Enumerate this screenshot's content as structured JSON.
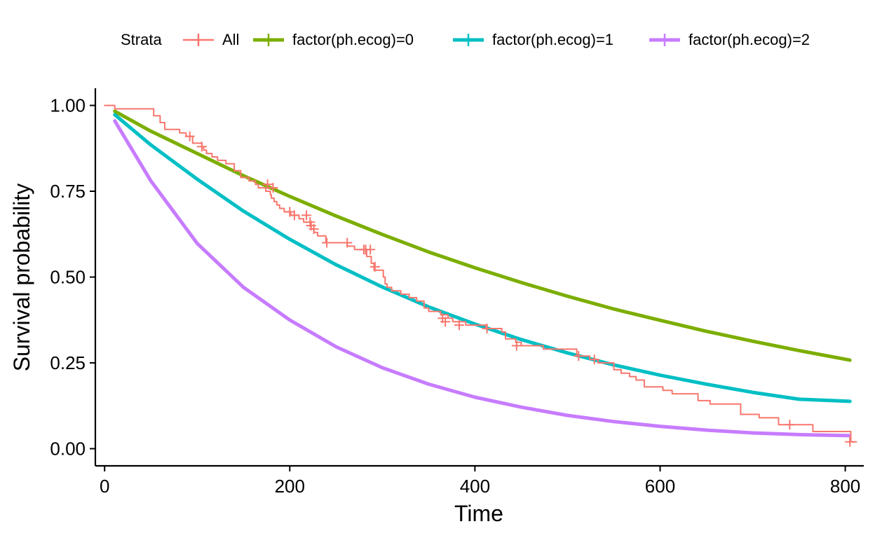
{
  "chart_data": {
    "type": "line",
    "xlabel": "Time",
    "ylabel": "Survival probability",
    "xlim": [
      -10,
      820
    ],
    "ylim": [
      -0.05,
      1.05
    ],
    "x_ticks": [
      0,
      200,
      400,
      600,
      800
    ],
    "x_tick_labels": [
      "0",
      "200",
      "400",
      "600",
      "800"
    ],
    "y_ticks": [
      0,
      0.25,
      0.5,
      0.75,
      1.0
    ],
    "y_tick_labels": [
      "0.00",
      "0.25",
      "0.50",
      "0.75",
      "1.00"
    ],
    "grid": false,
    "legend": {
      "title": "Strata",
      "placement": "top",
      "entries": [
        "All",
        "factor(ph.ecog)=0",
        "factor(ph.ecog)=1",
        "factor(ph.ecog)=2"
      ]
    },
    "series": [
      {
        "name": "All",
        "color": "#F8766D",
        "style": "step",
        "x": [
          0,
          11,
          13,
          53,
          60,
          65,
          71,
          81,
          88,
          95,
          105,
          107,
          110,
          116,
          122,
          131,
          140,
          147,
          156,
          163,
          166,
          170,
          174,
          179,
          180,
          183,
          186,
          189,
          194,
          201,
          210,
          215,
          223,
          226,
          230,
          239,
          246,
          262,
          270,
          283,
          288,
          291,
          301,
          303,
          305,
          310,
          320,
          329,
          337,
          345,
          350,
          363,
          371,
          376,
          390,
          412,
          429,
          433,
          444,
          450,
          474,
          510,
          524,
          533,
          550,
          558,
          567,
          574,
          583,
          603,
          613,
          641,
          654,
          687,
          707,
          728,
          765,
          806
        ],
        "y": [
          1.0,
          0.99,
          0.99,
          0.97,
          0.95,
          0.93,
          0.93,
          0.92,
          0.91,
          0.89,
          0.88,
          0.87,
          0.86,
          0.85,
          0.84,
          0.83,
          0.81,
          0.79,
          0.78,
          0.77,
          0.76,
          0.76,
          0.75,
          0.74,
          0.73,
          0.72,
          0.71,
          0.7,
          0.69,
          0.68,
          0.67,
          0.66,
          0.64,
          0.63,
          0.62,
          0.6,
          0.6,
          0.59,
          0.58,
          0.56,
          0.54,
          0.52,
          0.5,
          0.48,
          0.47,
          0.46,
          0.45,
          0.44,
          0.43,
          0.41,
          0.4,
          0.39,
          0.38,
          0.37,
          0.36,
          0.35,
          0.34,
          0.32,
          0.31,
          0.3,
          0.29,
          0.27,
          0.26,
          0.25,
          0.23,
          0.22,
          0.21,
          0.2,
          0.18,
          0.17,
          0.16,
          0.14,
          0.13,
          0.1,
          0.09,
          0.07,
          0.05,
          0.02
        ],
        "censor_x": [
          92,
          105,
          176,
          182,
          200,
          205,
          218,
          222,
          223,
          226,
          240,
          262,
          280,
          282,
          287,
          292,
          365,
          368,
          383,
          413,
          445,
          512,
          529,
          740,
          805
        ],
        "censor_y": [
          0.91,
          0.88,
          0.77,
          0.76,
          0.69,
          0.68,
          0.68,
          0.66,
          0.65,
          0.64,
          0.6,
          0.6,
          0.58,
          0.58,
          0.58,
          0.53,
          0.38,
          0.37,
          0.36,
          0.35,
          0.3,
          0.27,
          0.26,
          0.07,
          0.02
        ]
      },
      {
        "name": "factor(ph.ecog)=0",
        "color": "#7CAE00",
        "style": "curve",
        "x": [
          11,
          50,
          100,
          150,
          200,
          250,
          300,
          350,
          400,
          450,
          500,
          550,
          600,
          650,
          700,
          750,
          805
        ],
        "y": [
          0.983,
          0.925,
          0.86,
          0.795,
          0.735,
          0.678,
          0.624,
          0.573,
          0.527,
          0.484,
          0.444,
          0.407,
          0.374,
          0.342,
          0.313,
          0.286,
          0.258
        ]
      },
      {
        "name": "factor(ph.ecog)=1",
        "color": "#00BFC4",
        "style": "curve",
        "x": [
          11,
          50,
          100,
          150,
          200,
          250,
          300,
          350,
          400,
          450,
          500,
          550,
          600,
          650,
          700,
          750,
          805
        ],
        "y": [
          0.973,
          0.885,
          0.785,
          0.692,
          0.61,
          0.536,
          0.471,
          0.413,
          0.363,
          0.318,
          0.279,
          0.244,
          0.214,
          0.188,
          0.164,
          0.144,
          0.138
        ]
      },
      {
        "name": "factor(ph.ecog)=2",
        "color": "#C77CFF",
        "style": "curve",
        "x": [
          11,
          50,
          100,
          150,
          200,
          250,
          300,
          350,
          400,
          450,
          500,
          550,
          600,
          650,
          700,
          750,
          805
        ],
        "y": [
          0.955,
          0.78,
          0.598,
          0.47,
          0.375,
          0.297,
          0.236,
          0.188,
          0.15,
          0.121,
          0.097,
          0.079,
          0.065,
          0.054,
          0.046,
          0.041,
          0.038
        ]
      }
    ]
  }
}
